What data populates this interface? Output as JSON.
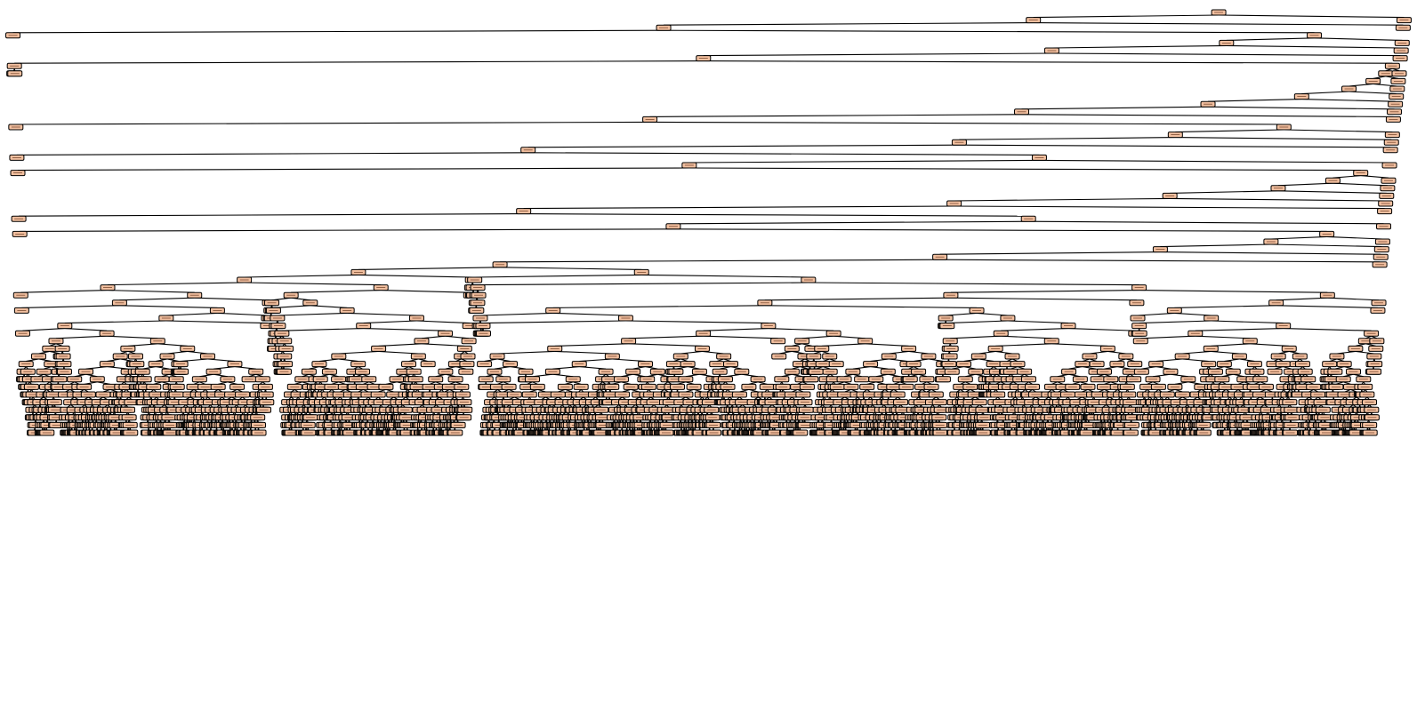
{
  "diagram": {
    "type": "decision-tree",
    "node_fill": "#f2c0a0",
    "node_text_color": "#7a4a30",
    "edge_color": "#000000",
    "background": "#ffffff",
    "max_depth": 55,
    "random_seed": 7
  }
}
